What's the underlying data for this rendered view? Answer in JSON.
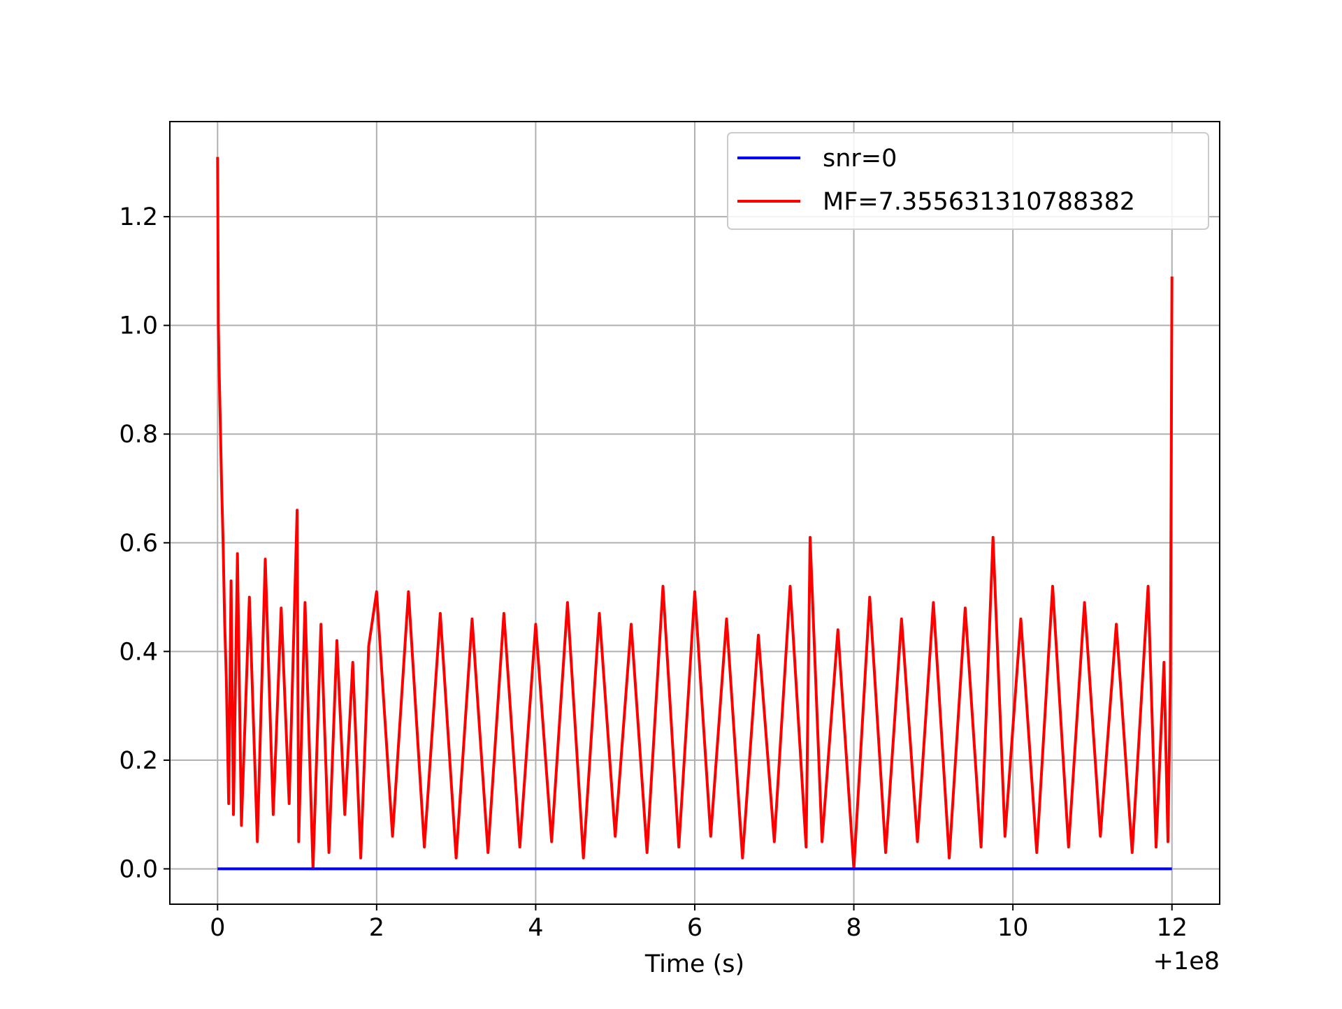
{
  "chart_data": {
    "type": "line",
    "title": "",
    "xlabel": "Time (s)",
    "ylabel": "",
    "x_offset_label": "+1e8",
    "xlim": [
      -0.6,
      12.6
    ],
    "ylim": [
      -0.065,
      1.375
    ],
    "grid": true,
    "legend_position": "top-right",
    "x_ticks": [
      0,
      2,
      4,
      6,
      8,
      10,
      12
    ],
    "x_tick_labels": [
      "0",
      "2",
      "4",
      "6",
      "8",
      "10",
      "12"
    ],
    "y_ticks": [
      0.0,
      0.2,
      0.4,
      0.6,
      0.8,
      1.0,
      1.2
    ],
    "y_tick_labels": [
      "0.0",
      "0.2",
      "0.4",
      "0.6",
      "0.8",
      "1.0",
      "1.2"
    ],
    "series": [
      {
        "name": "snr=0",
        "color": "#0000ff",
        "x": [
          0,
          12
        ],
        "y": [
          0.0,
          0.0
        ]
      },
      {
        "name": "MF=7.355631310788382",
        "color": "#ff0000",
        "x": [
          0.0,
          0.01,
          0.02,
          0.03,
          0.05,
          0.07,
          0.09,
          0.11,
          0.14,
          0.17,
          0.2,
          0.25,
          0.3,
          0.4,
          0.5,
          0.6,
          0.7,
          0.8,
          0.9,
          1.0,
          1.02,
          1.1,
          1.2,
          1.3,
          1.4,
          1.5,
          1.6,
          1.7,
          1.8,
          1.9,
          2.0,
          2.2,
          2.4,
          2.6,
          2.8,
          3.0,
          3.2,
          3.4,
          3.6,
          3.8,
          4.0,
          4.2,
          4.4,
          4.6,
          4.8,
          5.0,
          5.2,
          5.4,
          5.6,
          5.8,
          6.0,
          6.2,
          6.4,
          6.6,
          6.8,
          7.0,
          7.2,
          7.4,
          7.45,
          7.6,
          7.8,
          8.0,
          8.2,
          8.4,
          8.6,
          8.8,
          9.0,
          9.2,
          9.4,
          9.6,
          9.75,
          9.9,
          10.1,
          10.3,
          10.5,
          10.7,
          10.9,
          11.1,
          11.3,
          11.5,
          11.7,
          11.8,
          11.9,
          11.95,
          11.98,
          12.0
        ],
        "y": [
          1.31,
          1.0,
          0.92,
          0.85,
          0.71,
          0.6,
          0.45,
          0.35,
          0.12,
          0.53,
          0.1,
          0.58,
          0.08,
          0.5,
          0.05,
          0.57,
          0.1,
          0.48,
          0.12,
          0.66,
          0.05,
          0.49,
          0.0,
          0.45,
          0.03,
          0.42,
          0.1,
          0.38,
          0.02,
          0.41,
          0.51,
          0.06,
          0.51,
          0.04,
          0.47,
          0.02,
          0.46,
          0.03,
          0.47,
          0.04,
          0.45,
          0.05,
          0.49,
          0.02,
          0.47,
          0.06,
          0.45,
          0.03,
          0.52,
          0.04,
          0.51,
          0.06,
          0.46,
          0.02,
          0.43,
          0.05,
          0.52,
          0.04,
          0.61,
          0.05,
          0.44,
          0.0,
          0.5,
          0.03,
          0.46,
          0.05,
          0.49,
          0.02,
          0.48,
          0.04,
          0.61,
          0.06,
          0.46,
          0.03,
          0.52,
          0.04,
          0.49,
          0.06,
          0.45,
          0.03,
          0.52,
          0.04,
          0.38,
          0.05,
          0.35,
          1.09
        ]
      }
    ]
  }
}
